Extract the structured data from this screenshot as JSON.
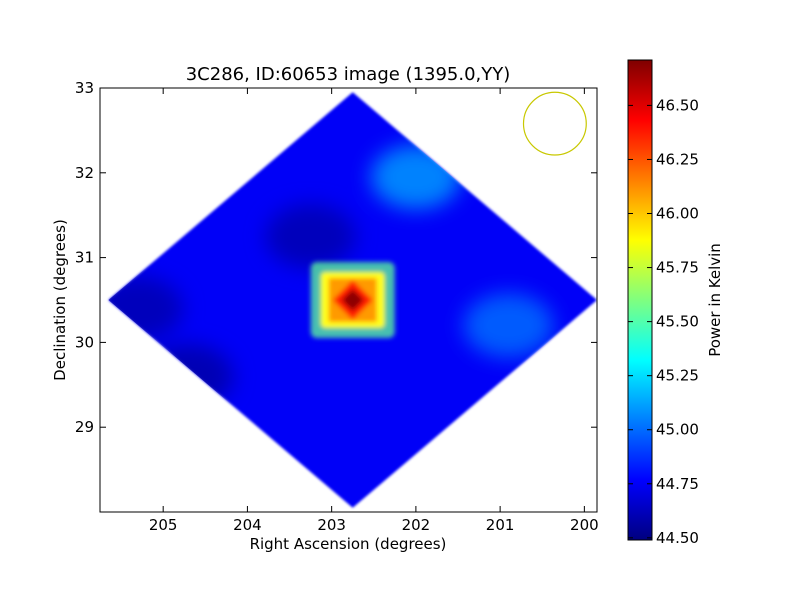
{
  "chart_data": {
    "type": "heatmap",
    "title": "3C286, ID:60653 image (1395.0,YY)",
    "xlabel": "Right Ascension (degrees)",
    "ylabel": "Declination (degrees)",
    "xlim": [
      205.75,
      199.85
    ],
    "ylim": [
      28.0,
      33.0
    ],
    "x_ticks": [
      205,
      204,
      203,
      202,
      201,
      200
    ],
    "x_tick_labels": [
      "205",
      "204",
      "203",
      "202",
      "201",
      "200"
    ],
    "y_ticks": [
      29,
      30,
      31,
      32,
      33
    ],
    "y_tick_labels": [
      "29",
      "30",
      "31",
      "32",
      "33"
    ],
    "colorbar": {
      "label": "Power in Kelvin",
      "range": [
        44.49,
        46.71
      ],
      "colormap": "jet",
      "ticks": [
        44.5,
        44.75,
        45.0,
        45.25,
        45.5,
        45.75,
        46.0,
        46.25,
        46.5
      ],
      "tick_labels": [
        "44.50",
        "44.75",
        "45.00",
        "45.25",
        "45.50",
        "45.75",
        "46.00",
        "46.25",
        "46.50"
      ]
    },
    "map": {
      "center_ra": 202.75,
      "center_dec": 30.5,
      "half_width_ra": 2.9,
      "half_width_dec": 2.45,
      "background_level": 44.75,
      "peak": {
        "ra": 202.75,
        "dec": 30.5,
        "value": 46.68,
        "label": "3C286"
      },
      "features": [
        {
          "ra": 202.0,
          "dec": 31.95,
          "value": 45.1
        },
        {
          "ra": 200.9,
          "dec": 30.2,
          "value": 45.0
        },
        {
          "ra": 204.7,
          "dec": 29.6,
          "value": 44.58
        },
        {
          "ra": 205.3,
          "dec": 30.4,
          "value": 44.6
        },
        {
          "ra": 203.25,
          "dec": 31.25,
          "value": 44.6
        }
      ]
    },
    "beam": {
      "ra": 200.35,
      "dec": 32.58,
      "radius_deg": 0.37,
      "color": "#c8c800"
    }
  }
}
